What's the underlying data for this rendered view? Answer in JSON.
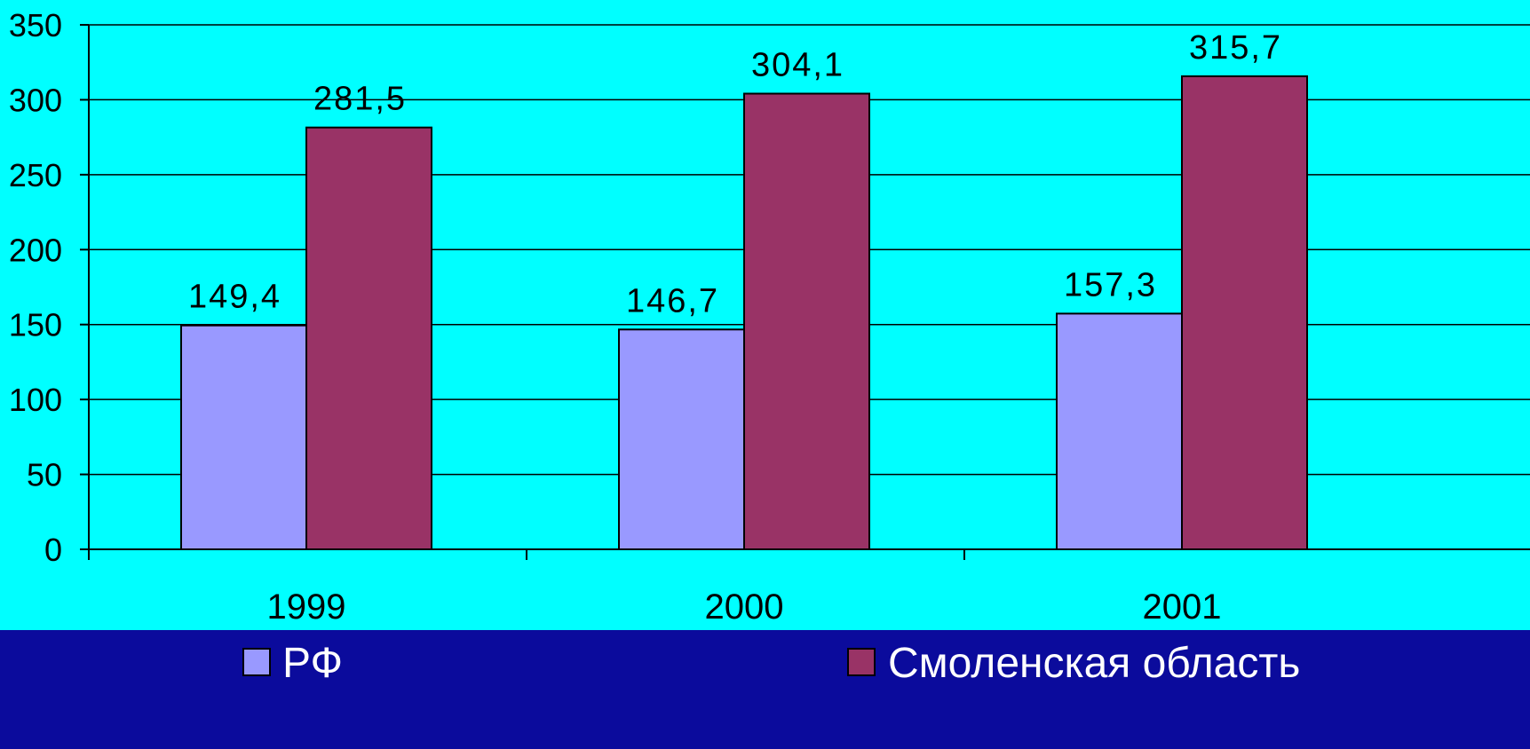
{
  "colors": {
    "page_background": "#0b0b9c",
    "plot_background": "#00ffff",
    "series_rf": "#9999ff",
    "series_smolensk": "#993366",
    "gridline": "#000000"
  },
  "chart_data": {
    "type": "bar",
    "categories": [
      "1999",
      "2000",
      "2001"
    ],
    "series": [
      {
        "name": "РФ",
        "values": [
          149.4,
          146.7,
          157.3
        ],
        "labels": [
          "149,4",
          "146,7",
          "157,3"
        ]
      },
      {
        "name": "Смоленская область",
        "values": [
          281.5,
          304.1,
          315.7
        ],
        "labels": [
          "281,5",
          "304,1",
          "315,7"
        ]
      }
    ],
    "ylim": [
      0,
      350
    ],
    "yticks": [
      0,
      50,
      100,
      150,
      200,
      250,
      300,
      350
    ],
    "grid": true,
    "legend_position": "bottom",
    "title": "",
    "xlabel": "",
    "ylabel": ""
  }
}
